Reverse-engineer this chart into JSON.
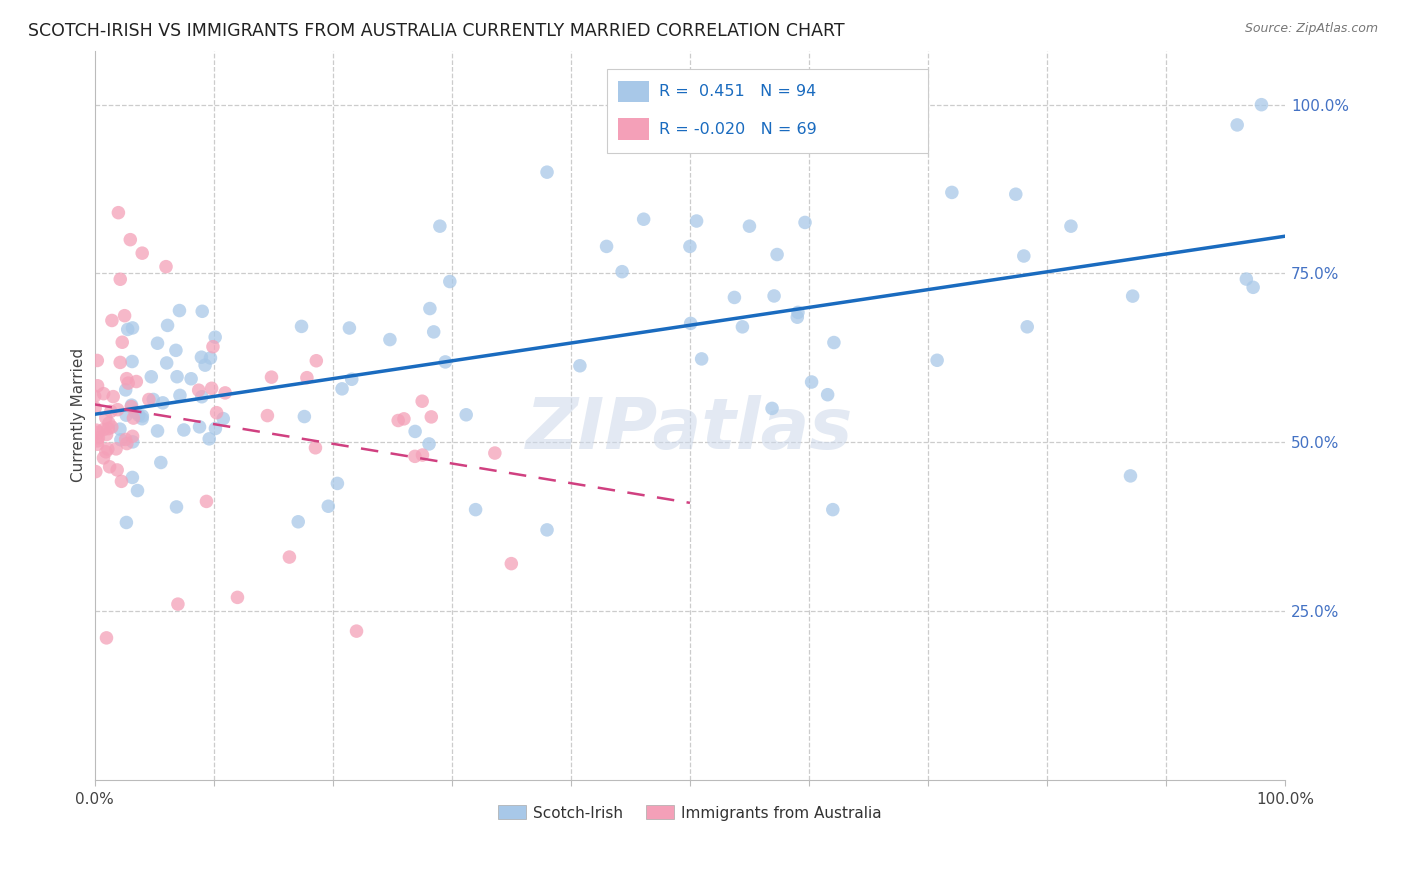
{
  "title": "SCOTCH-IRISH VS IMMIGRANTS FROM AUSTRALIA CURRENTLY MARRIED CORRELATION CHART",
  "source": "Source: ZipAtlas.com",
  "ylabel": "Currently Married",
  "legend_label1": "Scotch-Irish",
  "legend_label2": "Immigrants from Australia",
  "R1": 0.451,
  "N1": 94,
  "R2": -0.02,
  "N2": 69,
  "color_blue": "#a8c8e8",
  "color_pink": "#f4a0b8",
  "color_line_blue": "#1a6bbf",
  "color_line_pink": "#d04080",
  "watermark": "ZIPatlas",
  "ytick_vals": [
    0.25,
    0.5,
    0.75,
    1.0
  ],
  "ytick_labels": [
    "25.0%",
    "50.0%",
    "75.0%",
    "100.0%"
  ],
  "xlim": [
    0.0,
    1.0
  ],
  "ylim": [
    0.0,
    1.08
  ]
}
